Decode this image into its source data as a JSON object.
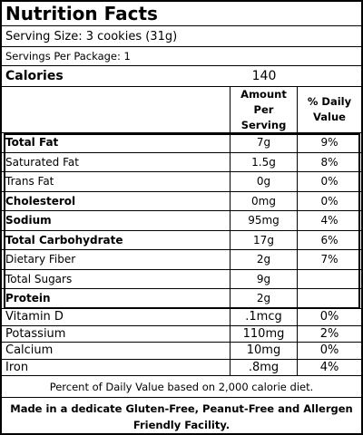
{
  "label": {
    "title": "Nutrition Facts",
    "serving_size": "Serving Size: 3 cookies (31g)",
    "servings_per_package": "Servings Per Package: 1",
    "calories_label": "Calories",
    "calories_value": "140",
    "header": {
      "amount_line1": "Amount",
      "amount_line2": "Per Serving",
      "dv_line1": "% Daily",
      "dv_line2": "Value"
    },
    "nutrients": [
      {
        "name": "Total Fat",
        "amount": "7g",
        "dv": "9%",
        "bold": true
      },
      {
        "name": "Saturated Fat",
        "amount": "1.5g",
        "dv": "8%",
        "bold": false
      },
      {
        "name": "Trans Fat",
        "amount": "0g",
        "dv": "0%",
        "bold": false
      },
      {
        "name": "Cholesterol",
        "amount": "0mg",
        "dv": "0%",
        "bold": true
      },
      {
        "name": "Sodium",
        "amount": "95mg",
        "dv": "4%",
        "bold": true
      },
      {
        "name": "Total Carbohydrate",
        "amount": "17g",
        "dv": "6%",
        "bold": true
      },
      {
        "name": "Dietary Fiber",
        "amount": "2g",
        "dv": "7%",
        "bold": false
      },
      {
        "name": "Total Sugars",
        "amount": "9g",
        "dv": "",
        "bold": false
      },
      {
        "name": "Protein",
        "amount": "2g",
        "dv": "",
        "bold": true
      }
    ],
    "vitamins": [
      {
        "name": "Vitamin D",
        "amount": ".1mcg",
        "dv": "0%"
      },
      {
        "name": "Potassium",
        "amount": "110mg",
        "dv": "2%"
      },
      {
        "name": "Calcium",
        "amount": "10mg",
        "dv": "0%"
      },
      {
        "name": "Iron",
        "amount": ".8mg",
        "dv": "4%"
      }
    ],
    "footnote": "Percent of Daily Value based on 2,000 calorie diet.",
    "facility_line1": "Made in a dedicate Gluten-Free, Peanut-Free and Allergen",
    "facility_line2": "Friendly Facility."
  }
}
